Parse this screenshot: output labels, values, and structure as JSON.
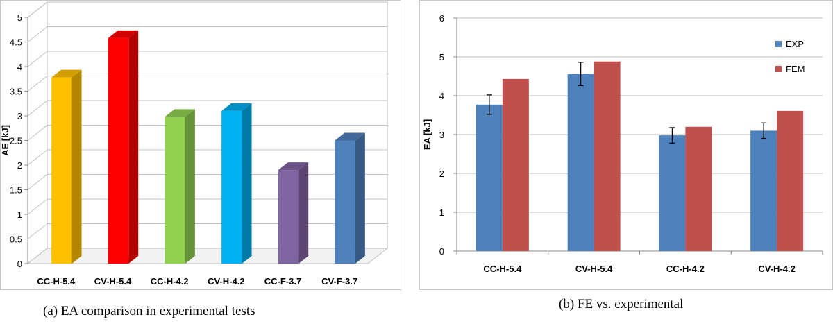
{
  "chart_data": [
    {
      "type": "bar",
      "style": "3d",
      "categories": [
        "CC-H-5.4",
        "CV-H-5.4",
        "CC-H-4.2",
        "CV-H-4.2",
        "CC-F-3.7",
        "CV-F-3.7"
      ],
      "values": [
        3.78,
        4.58,
        2.98,
        3.1,
        1.9,
        2.5
      ],
      "bar_colors": [
        "#FFC000",
        "#FF0000",
        "#92D050",
        "#00B0F0",
        "#8064A2",
        "#4F81BD"
      ],
      "ylabel": "AE [kJ]",
      "yticks": [
        "0",
        "0.5",
        "1",
        "1.5",
        "2",
        "2.5",
        "3",
        "3.5",
        "4",
        "4.5",
        "5"
      ],
      "ylim": [
        0,
        5
      ],
      "grid": true,
      "caption": "(a) EA comparison  in experimental tests"
    },
    {
      "type": "bar",
      "categories": [
        "CC-H-5.4",
        "CV-H-5.4",
        "CC-H-4.2",
        "CV-H-4.2"
      ],
      "series": [
        {
          "name": "EXP",
          "values": [
            3.77,
            4.56,
            2.98,
            3.1
          ],
          "errors": [
            0.25,
            0.3,
            0.2,
            0.2
          ],
          "color": "#4F81BD"
        },
        {
          "name": "FEM",
          "values": [
            4.43,
            4.88,
            3.2,
            3.61
          ],
          "color": "#C0504D"
        }
      ],
      "ylabel": "EA [kJ]",
      "yticks": [
        "0",
        "1",
        "2",
        "3",
        "4",
        "5",
        "6"
      ],
      "ylim": [
        0,
        6
      ],
      "grid": true,
      "legend_position": "top-right",
      "caption": "(b) FE vs. experimental"
    }
  ]
}
